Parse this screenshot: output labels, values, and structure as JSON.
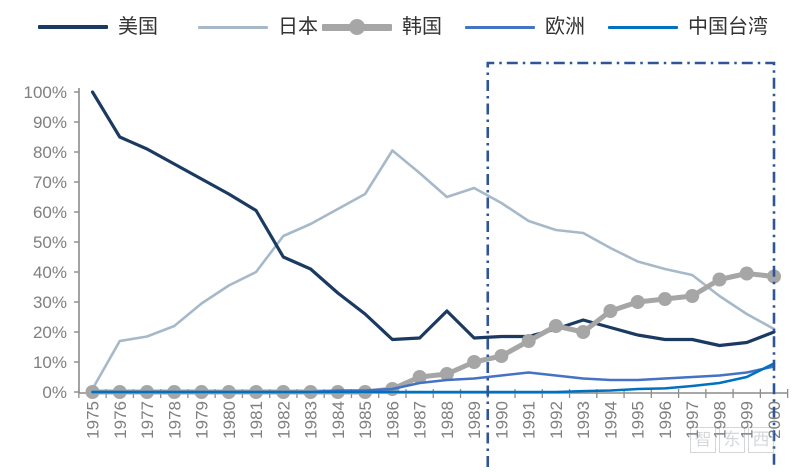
{
  "legend": {
    "items": [
      {
        "label": "美国",
        "key": "usa"
      },
      {
        "label": "日本",
        "key": "japan"
      },
      {
        "label": "韩国",
        "key": "korea"
      },
      {
        "label": "欧洲",
        "key": "europe"
      },
      {
        "label": "中国台湾",
        "key": "taiwan"
      }
    ]
  },
  "chart_data": {
    "type": "line",
    "title": "",
    "xlabel": "",
    "ylabel": "",
    "x": [
      1975,
      1976,
      1977,
      1978,
      1979,
      1980,
      1981,
      1982,
      1983,
      1984,
      1985,
      1986,
      1987,
      1988,
      1989,
      1990,
      1991,
      1992,
      1993,
      1994,
      1995,
      1996,
      1997,
      1998,
      1999,
      2000
    ],
    "ylim": [
      0,
      100
    ],
    "y_ticks": [
      0,
      10,
      20,
      30,
      40,
      50,
      60,
      70,
      80,
      90,
      100
    ],
    "y_tick_suffix": "%",
    "grid": false,
    "legend_position": "top",
    "axis_color": "#8c8c8c",
    "tick_label_color": "#7f7f7f",
    "series": [
      {
        "name": "美国",
        "key": "usa",
        "color": "#1b3a61",
        "width": 3.2,
        "z": 2,
        "marker": null,
        "values": [
          100,
          85,
          81,
          76,
          71,
          66,
          60.5,
          45,
          41,
          33,
          26,
          17.5,
          18,
          27,
          18,
          18.5,
          18.5,
          21,
          24,
          21.5,
          19,
          17.5,
          17.5,
          15.5,
          16.5,
          20
        ]
      },
      {
        "name": "日本",
        "key": "japan",
        "color": "#a7b9c9",
        "width": 2.6,
        "z": 1,
        "marker": null,
        "values": [
          1,
          17,
          18.5,
          22,
          29.5,
          35.5,
          40,
          52,
          56,
          61,
          66,
          80.5,
          73,
          65,
          68,
          63,
          57,
          54,
          53,
          48,
          43.5,
          41,
          39,
          32,
          26,
          21
        ]
      },
      {
        "name": "韩国",
        "key": "korea",
        "color": "#a6a6a6",
        "width": 5,
        "z": 3,
        "marker": "circle",
        "marker_r": 7,
        "values": [
          0,
          0,
          0,
          0,
          0,
          0,
          0,
          0,
          0,
          0,
          0,
          1,
          5,
          6,
          10,
          12,
          17,
          22,
          20,
          27,
          30,
          31,
          32,
          37.5,
          39.5,
          38.5
        ]
      },
      {
        "name": "欧洲",
        "key": "europe",
        "color": "#4472c4",
        "width": 2.5,
        "z": 4,
        "marker": null,
        "values": [
          0,
          0,
          0,
          0,
          0,
          0,
          0,
          0,
          0,
          0.5,
          0.5,
          1,
          3,
          4,
          4.5,
          5.5,
          6.5,
          5.5,
          4.5,
          4,
          4,
          4.5,
          5,
          5.5,
          6.5,
          8.5
        ]
      },
      {
        "name": "中国台湾",
        "key": "taiwan",
        "color": "#0070c0",
        "width": 2.5,
        "z": 5,
        "marker": null,
        "values": [
          0,
          0,
          0,
          0,
          0,
          0,
          0,
          0,
          0,
          0,
          0,
          0,
          0,
          0,
          0,
          0,
          0,
          0,
          0.3,
          0.5,
          1,
          1.2,
          2,
          3,
          5,
          9.5
        ]
      }
    ],
    "annotation_box": {
      "start_year": 1989.5,
      "end_year": 2000,
      "color": "#2e5597",
      "style": "dash-dot"
    }
  },
  "watermark": {
    "chars": [
      "智",
      "东",
      "西"
    ]
  }
}
